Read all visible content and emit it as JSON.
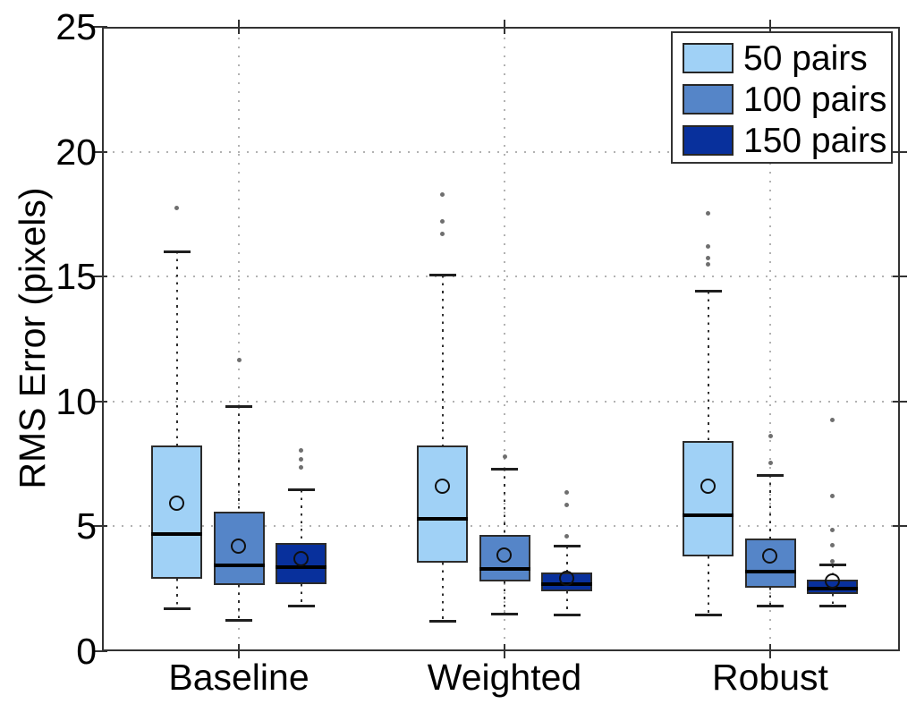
{
  "chart_data": {
    "type": "boxplot",
    "title": "",
    "xlabel": "",
    "ylabel": "RMS Error (pixels)",
    "ylim": [
      0,
      25
    ],
    "yticks": [
      0,
      5,
      10,
      15,
      20,
      25
    ],
    "ytick_labels": [
      "0",
      "5",
      "10",
      "15",
      "20",
      "25"
    ],
    "grid": "dotted, horizontal at 5/10/15/20 and vertical at each category",
    "categories": [
      "Baseline",
      "Weighted",
      "Robust"
    ],
    "legend": {
      "position": "top-right",
      "entries": [
        {
          "label": "50 pairs",
          "color": "#A0D1F6"
        },
        {
          "label": "100 pairs",
          "color": "#5585C8"
        },
        {
          "label": "150 pairs",
          "color": "#08309C"
        }
      ]
    },
    "series": [
      {
        "name": "50 pairs",
        "color": "#A0D1F6",
        "boxes": [
          {
            "category": "Baseline",
            "whisker_low": 1.7,
            "q1": 2.9,
            "median": 4.7,
            "q3": 8.25,
            "whisker_high": 16.0,
            "mean": 5.9,
            "outliers": [
              17.75
            ]
          },
          {
            "category": "Weighted",
            "whisker_low": 1.2,
            "q1": 3.55,
            "median": 5.3,
            "q3": 8.25,
            "whisker_high": 15.05,
            "mean": 6.6,
            "outliers": [
              16.7,
              17.2,
              18.3
            ]
          },
          {
            "category": "Robust",
            "whisker_low": 1.45,
            "q1": 3.8,
            "median": 5.45,
            "q3": 8.4,
            "whisker_high": 14.4,
            "mean": 6.6,
            "outliers": [
              15.5,
              15.75,
              16.2,
              17.55
            ]
          }
        ]
      },
      {
        "name": "100 pairs",
        "color": "#5585C8",
        "boxes": [
          {
            "category": "Baseline",
            "whisker_low": 1.25,
            "q1": 2.65,
            "median": 3.45,
            "q3": 5.6,
            "whisker_high": 9.8,
            "mean": 4.2,
            "outliers": [
              11.65
            ]
          },
          {
            "category": "Weighted",
            "whisker_low": 1.5,
            "q1": 2.8,
            "median": 3.3,
            "q3": 4.65,
            "whisker_high": 7.3,
            "mean": 3.85,
            "outliers": [
              7.8
            ]
          },
          {
            "category": "Robust",
            "whisker_low": 1.8,
            "q1": 2.55,
            "median": 3.2,
            "q3": 4.5,
            "whisker_high": 7.05,
            "mean": 3.8,
            "outliers": [
              7.55,
              8.6
            ]
          }
        ]
      },
      {
        "name": "150 pairs",
        "color": "#08309C",
        "boxes": [
          {
            "category": "Baseline",
            "whisker_low": 1.8,
            "q1": 2.7,
            "median": 3.35,
            "q3": 4.35,
            "whisker_high": 6.45,
            "mean": 3.7,
            "outliers": [
              7.35,
              7.7,
              8.05
            ]
          },
          {
            "category": "Weighted",
            "whisker_low": 1.45,
            "q1": 2.4,
            "median": 2.7,
            "q3": 3.15,
            "whisker_high": 4.2,
            "mean": 2.9,
            "outliers": [
              4.6,
              5.85,
              6.35
            ]
          },
          {
            "category": "Robust",
            "whisker_low": 1.8,
            "q1": 2.3,
            "median": 2.5,
            "q3": 2.85,
            "whisker_high": 3.45,
            "mean": 2.8,
            "outliers": [
              3.6,
              4.25,
              4.85,
              6.2,
              9.25
            ]
          }
        ]
      }
    ]
  }
}
